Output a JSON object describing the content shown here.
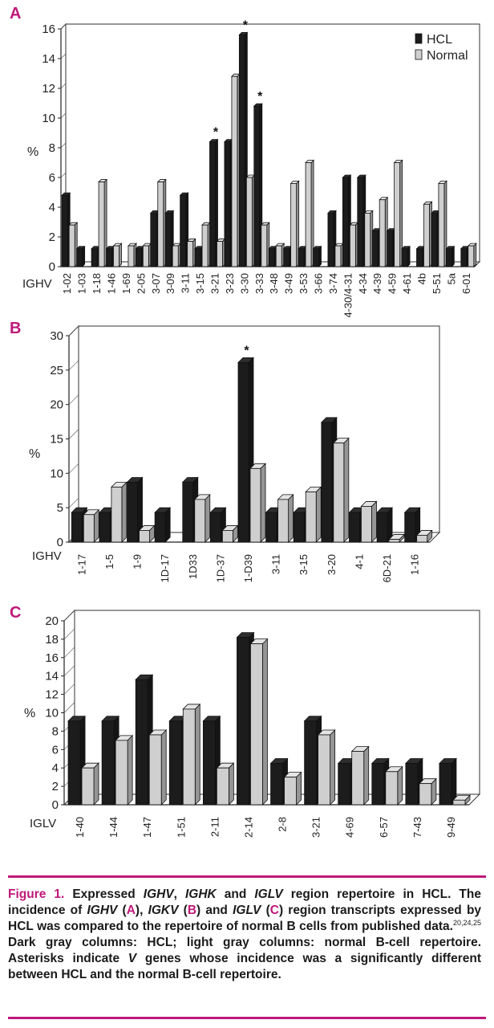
{
  "panels": {
    "a": "A",
    "b": "B",
    "c": "C"
  },
  "chart_data": [
    {
      "type": "bar",
      "panel": "A",
      "ylabel": "%",
      "xlabel": "IGHV",
      "ylim": [
        0,
        16
      ],
      "yticks": [
        0,
        2,
        4,
        6,
        8,
        10,
        12,
        14,
        16
      ],
      "legend": [
        "HCL",
        "Normal"
      ],
      "categories": [
        "1-02",
        "1-03",
        "1-18",
        "1-46",
        "1-69",
        "2-05",
        "3-07",
        "3-09",
        "3-11",
        "3-15",
        "3-21",
        "3-23",
        "3-30",
        "3-33",
        "3-48",
        "3-49",
        "3-53",
        "3-66",
        "3-74",
        "4-30/4-31",
        "4-34",
        "4-39",
        "4-59",
        "4-61",
        "4b",
        "5-51",
        "5a",
        "6-01"
      ],
      "series": [
        {
          "name": "HCL",
          "color": "#1c1c1c",
          "values": [
            4.8,
            1.2,
            1.2,
            1.2,
            0,
            1.2,
            3.6,
            3.6,
            4.8,
            1.2,
            8.4,
            8.4,
            15.6,
            10.8,
            1.2,
            1.2,
            1.2,
            1.2,
            3.6,
            6,
            6,
            2.4,
            2.4,
            1.2,
            1.2,
            3.6,
            1.2,
            1.2
          ]
        },
        {
          "name": "Normal",
          "color": "#cfcfcf",
          "values": [
            2.8,
            0,
            5.7,
            1.4,
            1.4,
            1.4,
            5.7,
            1.4,
            1.7,
            2.8,
            1.7,
            12.8,
            6,
            2.8,
            1.4,
            5.6,
            7,
            0,
            1.4,
            2.8,
            3.6,
            4.5,
            7,
            0,
            4.2,
            5.6,
            0,
            1.4
          ]
        }
      ],
      "asterisks": [
        "3-21",
        "3-30",
        "3-33"
      ]
    },
    {
      "type": "bar",
      "panel": "B",
      "ylabel": "%",
      "xlabel": "IGHV",
      "ylim": [
        0,
        30
      ],
      "yticks": [
        0,
        5,
        10,
        15,
        20,
        25,
        30
      ],
      "categories": [
        "1-17",
        "1-5",
        "1-9",
        "1D-17",
        "1D33",
        "1D-37",
        "1-D39",
        "3-11",
        "3-15",
        "3-20",
        "4-1",
        "6D-21",
        "1-16"
      ],
      "series": [
        {
          "name": "HCL",
          "color": "#1c1c1c",
          "values": [
            4.3,
            4.3,
            8.7,
            4.3,
            8.7,
            4.3,
            26.1,
            4.3,
            4.3,
            17.4,
            4.3,
            4.3,
            4.3
          ]
        },
        {
          "name": "Normal",
          "color": "#cfcfcf",
          "values": [
            4,
            8,
            1.7,
            0,
            6.2,
            1.7,
            10.7,
            6.2,
            7.3,
            14.4,
            5.2,
            0.4,
            1
          ]
        }
      ],
      "asterisks": [
        "1-D39"
      ]
    },
    {
      "type": "bar",
      "panel": "C",
      "ylabel": "%",
      "xlabel": "IGLV",
      "ylim": [
        0,
        20
      ],
      "yticks": [
        0,
        2,
        4,
        6,
        8,
        10,
        12,
        14,
        16,
        18,
        20
      ],
      "categories": [
        "1-40",
        "1-44",
        "1-47",
        "1-51",
        "2-11",
        "2-14",
        "2-8",
        "3-21",
        "4-69",
        "6-57",
        "7-43",
        "9-49"
      ],
      "series": [
        {
          "name": "HCL",
          "color": "#1c1c1c",
          "values": [
            9.1,
            9.1,
            13.6,
            9.1,
            9.1,
            18.2,
            4.5,
            9.1,
            4.5,
            4.5,
            4.5,
            4.5
          ]
        },
        {
          "name": "Normal",
          "color": "#cfcfcf",
          "values": [
            4,
            7,
            7.6,
            10.4,
            4,
            17.5,
            3,
            7.6,
            5.8,
            3.6,
            2.3,
            0.5
          ]
        }
      ],
      "asterisks": []
    }
  ],
  "caption": {
    "figure_label": "Figure 1.",
    "p1": " Expressed ",
    "g1": "IGHV",
    "p2": ", ",
    "g2": "IGHK",
    "p3": " and ",
    "g3": "IGLV",
    "p4": " region repertoire in HCL. The incidence of ",
    "g4": "IGHV",
    "p5": " (",
    "a": "A",
    "p6": "), ",
    "g5": "IGKV",
    "p7": " (",
    "b": "B",
    "p8": ") and ",
    "g6": "IGLV",
    "p9": " (",
    "c": "C",
    "p10": ") region transcripts expressed by HCL was compared to the repertoire of normal B cells from published data.",
    "refs": "20,24,25",
    "p11": " Dark gray columns: HCL; light gray columns: normal B-cell repertoire. Asterisks indicate ",
    "g7": "V",
    "p12": " genes whose incidence was a significantly different between HCL and the normal B-cell repertoire."
  }
}
